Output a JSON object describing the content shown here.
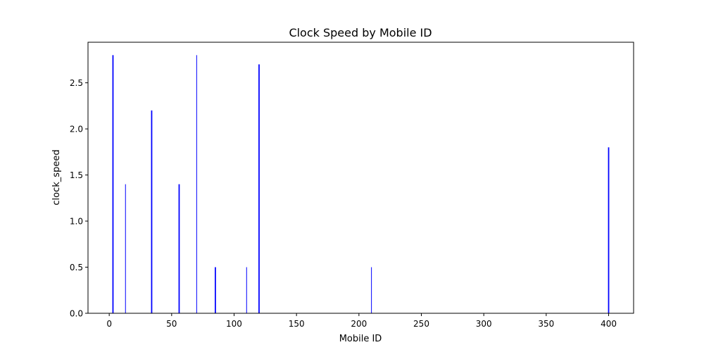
{
  "chart_data": {
    "type": "bar",
    "title": "Clock Speed by Mobile ID",
    "xlabel": "Mobile ID",
    "ylabel": "clock_speed",
    "xlim": [
      -17,
      420
    ],
    "ylim": [
      0,
      2.94
    ],
    "xticks": [
      0,
      50,
      100,
      150,
      200,
      250,
      300,
      350,
      400
    ],
    "yticks": [
      0.0,
      0.5,
      1.0,
      1.5,
      2.0,
      2.5
    ],
    "ytick_labels": [
      "0.0",
      "0.5",
      "1.0",
      "1.5",
      "2.0",
      "2.5"
    ],
    "bar_color": "#0000ff",
    "grid": false,
    "bars": [
      {
        "x": 3,
        "width": 1.0,
        "value": 2.8
      },
      {
        "x": 13,
        "width": 0.5,
        "value": 1.4
      },
      {
        "x": 34,
        "width": 1.0,
        "value": 2.2
      },
      {
        "x": 56,
        "width": 1.0,
        "value": 1.4
      },
      {
        "x": 70,
        "width": 0.5,
        "value": 2.8
      },
      {
        "x": 85,
        "width": 1.0,
        "value": 0.5
      },
      {
        "x": 110,
        "width": 0.5,
        "value": 0.5
      },
      {
        "x": 120,
        "width": 1.0,
        "value": 2.7
      },
      {
        "x": 210,
        "width": 0.5,
        "value": 0.5
      },
      {
        "x": 400,
        "width": 1.0,
        "value": 1.8
      }
    ]
  }
}
